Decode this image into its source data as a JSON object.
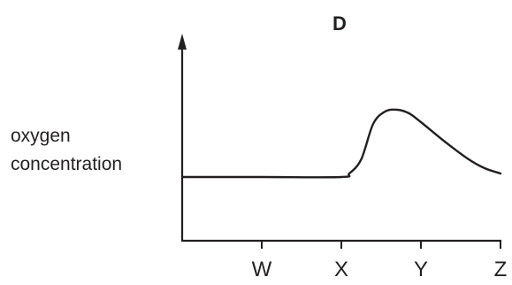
{
  "chart_data": {
    "type": "line",
    "title": "D",
    "ylabel_lines": [
      "oxygen",
      "concentration"
    ],
    "xlabel": "",
    "x_ticks": [
      {
        "label": "W",
        "value": 1
      },
      {
        "label": "X",
        "value": 2
      },
      {
        "label": "Y",
        "value": 3
      },
      {
        "label": "Z",
        "value": 4
      }
    ],
    "xlim": [
      0,
      4
    ],
    "ylim": [
      0,
      10
    ],
    "grid": false,
    "line_color": "#231f20",
    "series": [
      {
        "x": [
          0,
          1,
          2,
          2.1,
          2.25,
          2.4,
          2.55,
          2.7,
          2.85,
          3.0,
          3.3,
          3.6,
          3.8,
          4.0
        ],
        "y": [
          3.6,
          3.6,
          3.6,
          3.8,
          4.6,
          6.6,
          7.3,
          7.4,
          7.2,
          6.7,
          5.6,
          4.6,
          4.1,
          3.8
        ]
      }
    ]
  }
}
